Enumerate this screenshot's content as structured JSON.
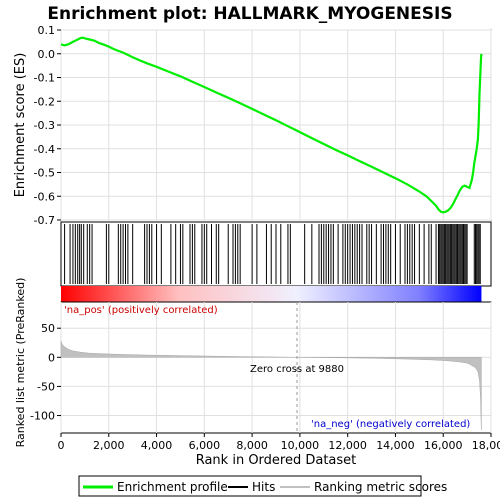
{
  "chart_data": {
    "type": "line",
    "title": "Enrichment plot: HALLMARK_MYOGENESIS",
    "xlabel": "Rank in Ordered Dataset",
    "xlim": [
      0,
      18000
    ],
    "x_ticks": [
      0,
      2000,
      4000,
      6000,
      8000,
      10000,
      12000,
      14000,
      16000,
      18000
    ],
    "x_tick_labels": [
      "0",
      "2,000",
      "4,000",
      "6,000",
      "8,000",
      "10,000",
      "12,000",
      "14,000",
      "16,000",
      "18,000"
    ],
    "n_genes": 17600,
    "top_panel": {
      "ylabel": "Enrichment score (ES)",
      "ylim": [
        -0.7,
        0.1
      ],
      "y_ticks": [
        0.1,
        0.0,
        -0.1,
        -0.2,
        -0.3,
        -0.4,
        -0.5,
        -0.6,
        -0.7
      ],
      "y_tick_labels": [
        "0.1",
        "0.0",
        "-0.1",
        "-0.2",
        "-0.3",
        "-0.4",
        "-0.5",
        "-0.6",
        "-0.7"
      ],
      "series": [
        {
          "name": "Enrichment profile",
          "color": "#00ee00",
          "x": [
            0,
            150,
            300,
            400,
            500,
            600,
            700,
            800,
            900,
            1000,
            1100,
            1200,
            1400,
            1600,
            1800,
            2000,
            2200,
            2400,
            2600,
            2800,
            3000,
            3300,
            3600,
            4000,
            4500,
            5000,
            5500,
            6000,
            6500,
            7000,
            7500,
            8000,
            8500,
            9000,
            9500,
            10000,
            10500,
            11000,
            11500,
            12000,
            12500,
            13000,
            13500,
            14000,
            14500,
            15000,
            15300,
            15500,
            15700,
            15800,
            15900,
            16000,
            16100,
            16200,
            16300,
            16400,
            16500,
            16600,
            16700,
            16800,
            16900,
            17000,
            17100,
            17200,
            17250,
            17300,
            17350,
            17400,
            17450,
            17480,
            17500,
            17520,
            17540,
            17560,
            17580,
            17600
          ],
          "y": [
            0.04,
            0.035,
            0.04,
            0.045,
            0.05,
            0.055,
            0.06,
            0.065,
            0.068,
            0.065,
            0.062,
            0.06,
            0.055,
            0.045,
            0.038,
            0.03,
            0.02,
            0.012,
            0.005,
            -0.005,
            -0.015,
            -0.028,
            -0.04,
            -0.055,
            -0.075,
            -0.095,
            -0.118,
            -0.14,
            -0.163,
            -0.185,
            -0.208,
            -0.232,
            -0.256,
            -0.28,
            -0.305,
            -0.33,
            -0.355,
            -0.38,
            -0.405,
            -0.428,
            -0.452,
            -0.476,
            -0.5,
            -0.524,
            -0.55,
            -0.58,
            -0.6,
            -0.62,
            -0.64,
            -0.655,
            -0.665,
            -0.668,
            -0.665,
            -0.66,
            -0.65,
            -0.635,
            -0.615,
            -0.595,
            -0.575,
            -0.56,
            -0.555,
            -0.56,
            -0.565,
            -0.53,
            -0.5,
            -0.46,
            -0.43,
            -0.4,
            -0.36,
            -0.3,
            -0.23,
            -0.17,
            -0.12,
            -0.07,
            -0.02,
            0.0
          ]
        }
      ]
    },
    "hits": {
      "name": "Hits",
      "positions": [
        150,
        380,
        500,
        600,
        700,
        780,
        850,
        950,
        1100,
        1200,
        1300,
        1900,
        2000,
        2400,
        2500,
        2600,
        2700,
        2800,
        3000,
        3500,
        3600,
        3700,
        3800,
        4000,
        4200,
        4600,
        4800,
        5000,
        5100,
        5400,
        5500,
        5600,
        5900,
        6000,
        6100,
        6300,
        6500,
        6600,
        7000,
        7200,
        7300,
        7400,
        7500,
        8000,
        8200,
        8600,
        8800,
        9000,
        9200,
        9500,
        9600,
        10200,
        10500,
        10800,
        10900,
        11000,
        11100,
        11200,
        11300,
        11400,
        11600,
        11800,
        11900,
        12000,
        12100,
        12200,
        12300,
        12400,
        12500,
        12600,
        12800,
        12900,
        13000,
        13200,
        13400,
        13500,
        13600,
        13700,
        13800,
        14000,
        14200,
        14400,
        14500,
        14600,
        14700,
        14800,
        15000,
        15200,
        15400,
        15500,
        15700,
        15800,
        15850,
        15900,
        15950,
        16000,
        16050,
        16100,
        16150,
        16200,
        16250,
        16300,
        16350,
        16400,
        16450,
        16500,
        16550,
        16600,
        16650,
        16700,
        16750,
        16800,
        16850,
        16900,
        16950,
        17000,
        17300,
        17350,
        17400,
        17450,
        17500,
        17550
      ]
    },
    "bottom_panel": {
      "ylabel": "Ranked list metric (PreRanked)",
      "ylim": [
        -130,
        95
      ],
      "y_ticks": [
        50,
        0,
        -50,
        -100
      ],
      "y_tick_labels": [
        "50",
        "0",
        "-50",
        "-100"
      ],
      "series": [
        {
          "name": "Ranking metric scores",
          "color": "#c0c0c0",
          "x": [
            0,
            50,
            150,
            300,
            500,
            800,
            1200,
            1800,
            2500,
            3500,
            5000,
            7000,
            9000,
            9880,
            11000,
            13000,
            14500,
            15500,
            16200,
            16700,
            17000,
            17200,
            17350,
            17450,
            17520,
            17560,
            17590,
            17600
          ],
          "y": [
            28,
            22,
            18,
            14,
            11,
            9,
            7,
            6,
            5,
            4,
            3,
            1.5,
            0.5,
            0,
            -0.5,
            -1.5,
            -3,
            -4.5,
            -6,
            -8,
            -10,
            -14,
            -18,
            -25,
            -40,
            -70,
            -120,
            -125
          ]
        }
      ]
    },
    "zero_cross": 9880,
    "annotations": {
      "zero_cross_text": "Zero cross at 9880",
      "pos_text": "'na_pos' (positively correlated)",
      "neg_text": "'na_neg' (negatively correlated)"
    },
    "legend": [
      {
        "name": "Enrichment profile",
        "color": "#00ee00"
      },
      {
        "name": "Hits",
        "color": "#000000"
      },
      {
        "name": "Ranking metric scores",
        "color": "#c0c0c0"
      }
    ],
    "legend_position": "bottom",
    "grid": true
  }
}
